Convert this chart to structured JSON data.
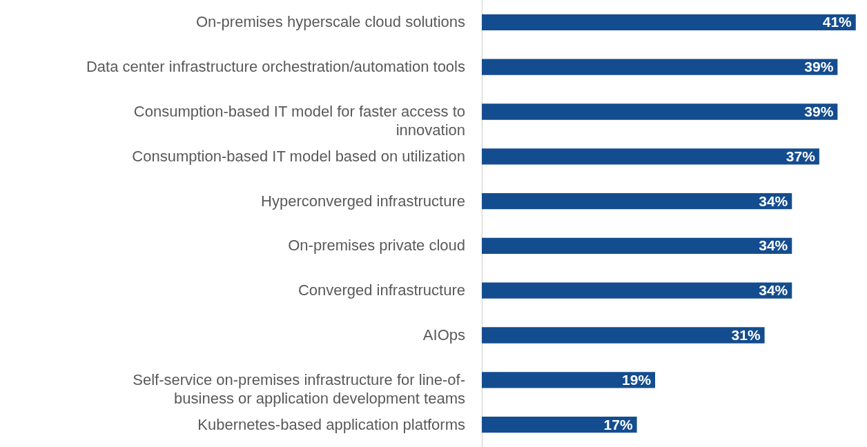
{
  "chart_data": {
    "type": "bar",
    "orientation": "horizontal",
    "grid": false,
    "tick_labels": "y",
    "categories": [
      "On-premises hyperscale cloud solutions",
      "Data center infrastructure orchestration/automation tools",
      "Consumption-based IT model for faster access to innovation",
      "Consumption-based IT model based on utilization",
      "Hyperconverged infrastructure",
      "On-premises private cloud",
      "Converged infrastructure",
      "AIOps",
      "Self-service on-premises infrastructure for line-of-business or application development teams",
      "Kubernetes-based application platforms"
    ],
    "series": [
      {
        "color": "#144d8f",
        "values": [
          41,
          39,
          39,
          37,
          34,
          34,
          34,
          31,
          19,
          17
        ],
        "value_labels": [
          "41%",
          "39%",
          "39%",
          "37%",
          "34%",
          "34%",
          "34%",
          "31%",
          "19%",
          "17%"
        ]
      }
    ]
  }
}
